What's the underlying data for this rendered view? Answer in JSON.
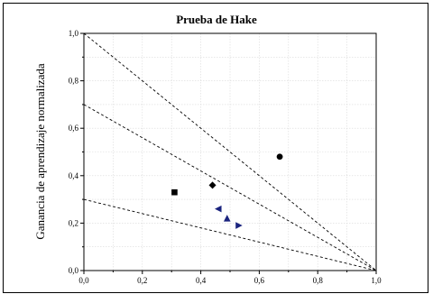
{
  "chart_data": {
    "type": "scatter",
    "title": "Prueba de Hake",
    "xlabel": "",
    "ylabel": "Ganancia de aprendizaje normalizada",
    "xlim": [
      0.0,
      1.0
    ],
    "ylim": [
      0.0,
      1.0
    ],
    "xticks": [
      "0,0",
      "0,2",
      "0,4",
      "0,6",
      "0,8",
      "1,0"
    ],
    "yticks": [
      "0,0",
      "0,2",
      "0,4",
      "0,6",
      "0,8",
      "1,0"
    ],
    "grid": true,
    "reference_lines": [
      {
        "x": [
          0.0,
          1.0
        ],
        "y": [
          1.0,
          0.0
        ],
        "style": "dashed"
      },
      {
        "x": [
          0.0,
          1.0
        ],
        "y": [
          0.7,
          0.0
        ],
        "style": "dashed"
      },
      {
        "x": [
          0.0,
          1.0
        ],
        "y": [
          0.3,
          0.0
        ],
        "style": "dashed"
      }
    ],
    "series": [
      {
        "marker": "square",
        "color": "#000000",
        "points": [
          [
            0.31,
            0.33
          ]
        ]
      },
      {
        "marker": "diamond",
        "color": "#000000",
        "points": [
          [
            0.44,
            0.36
          ]
        ]
      },
      {
        "marker": "circle",
        "color": "#000000",
        "points": [
          [
            0.67,
            0.48
          ]
        ]
      },
      {
        "marker": "triangle-left",
        "color": "#1a237e",
        "points": [
          [
            0.46,
            0.26
          ]
        ]
      },
      {
        "marker": "triangle-up",
        "color": "#1a237e",
        "points": [
          [
            0.49,
            0.22
          ]
        ]
      },
      {
        "marker": "triangle-right",
        "color": "#1a237e",
        "points": [
          [
            0.53,
            0.19
          ]
        ]
      }
    ]
  }
}
